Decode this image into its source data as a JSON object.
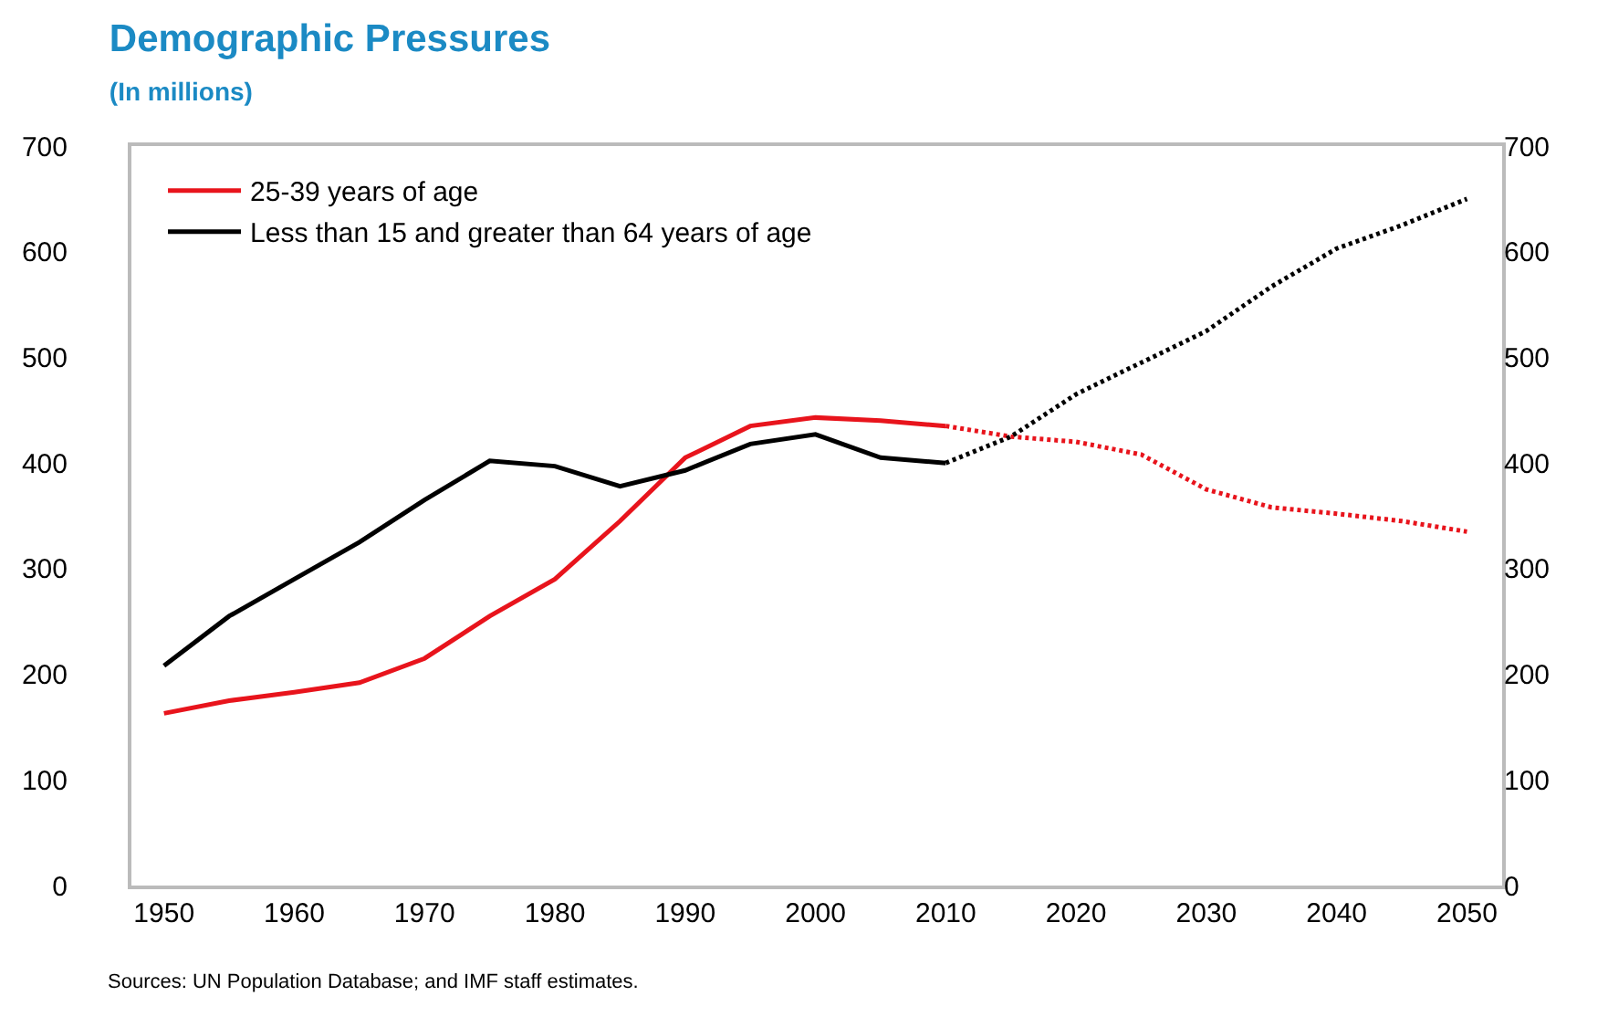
{
  "chart_data": {
    "type": "line",
    "title": "Demographic Pressures",
    "subtitle": "(In millions)",
    "x": [
      1950,
      1955,
      1960,
      1965,
      1970,
      1975,
      1980,
      1985,
      1990,
      1995,
      2000,
      2005,
      2010
    ],
    "series": [
      {
        "name": "25-39 years of age",
        "color": "#e8141c",
        "values": [
          163,
          175,
          183,
          192,
          215,
          255,
          290,
          345,
          405,
          435,
          443,
          440,
          435
        ]
      },
      {
        "name": "Less than 15 and greater than 64 years of age",
        "color": "#000000",
        "values": [
          208,
          255,
          290,
          325,
          365,
          402,
          397,
          378,
          393,
          418,
          427,
          405,
          400
        ]
      },
      {
        "color": "#e8141c",
        "line_style": "dotted",
        "x": [
          2010,
          2015,
          2020,
          2025,
          2030,
          2035,
          2040,
          2045,
          2050
        ],
        "values": [
          435,
          425,
          420,
          408,
          375,
          358,
          352,
          345,
          335
        ]
      },
      {
        "color": "#000000",
        "line_style": "dotted",
        "x": [
          2010,
          2015,
          2020,
          2025,
          2030,
          2035,
          2040,
          2045,
          2050
        ],
        "values": [
          400,
          425,
          465,
          495,
          525,
          567,
          603,
          625,
          650
        ]
      }
    ],
    "xlim": [
      1947.5,
      2052.7
    ],
    "xticks": [
      1950,
      1960,
      1970,
      1980,
      1990,
      2000,
      2010,
      2020,
      2030,
      2040,
      2050
    ],
    "ylim": [
      0,
      700
    ],
    "yticks": [
      0,
      100,
      200,
      300,
      400,
      500,
      600,
      700
    ],
    "y2lim": [
      0,
      700
    ],
    "y2ticks": [
      0,
      100,
      200,
      300,
      400,
      500,
      600,
      700
    ],
    "line_style": "solid",
    "marker": "none",
    "grid": false,
    "legend": "top left",
    "annotations": [
      "Sources: UN Population Database; and IMF staff estimates."
    ]
  }
}
